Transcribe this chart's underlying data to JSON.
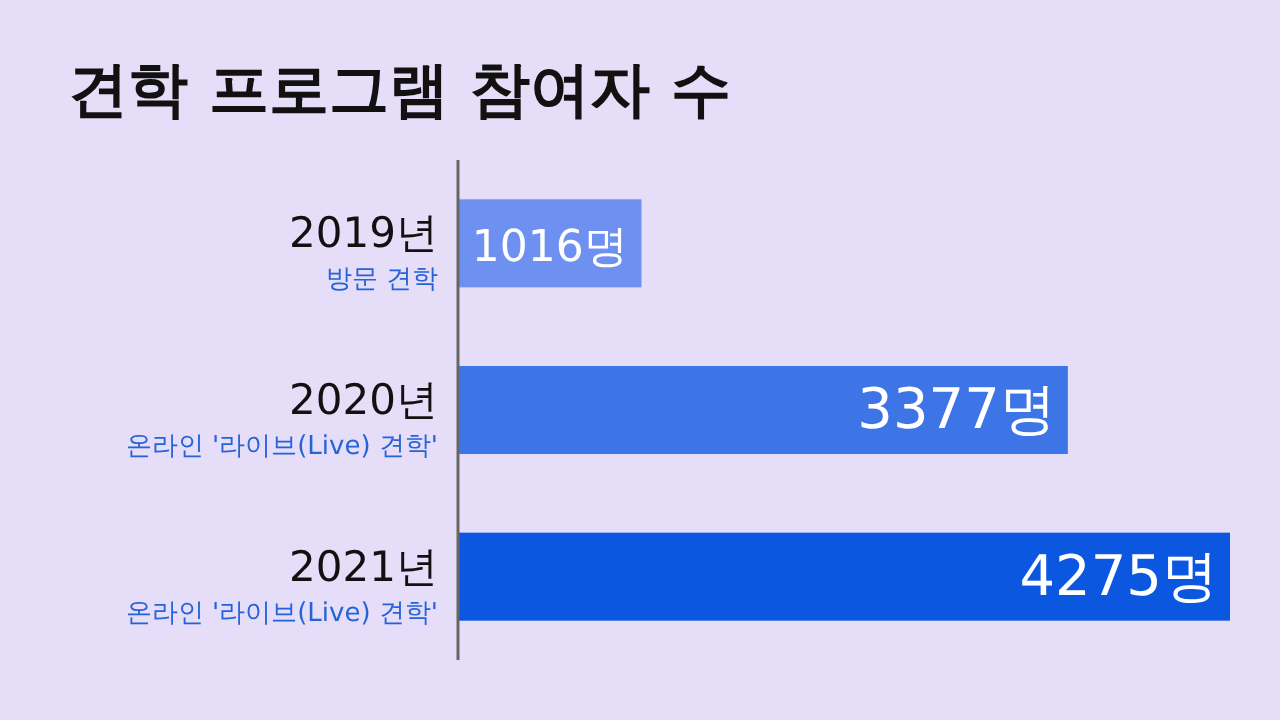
{
  "chart_data": {
    "type": "bar",
    "orientation": "horizontal",
    "title": "견학 프로그램 참여자 수",
    "categories": [
      "2019년\n방문 견학",
      "2020년\n온라인 '라이브(Live) 견학'",
      "2021년\n온라인 '라이브(Live) 견학'"
    ],
    "values": [
      1016,
      3377,
      4275
    ],
    "colors": [
      "#6e90f0",
      "#3d74e6",
      "#0b57e0"
    ],
    "value_labels": [
      "1016명",
      "3377명",
      "4275명"
    ]
  }
}
